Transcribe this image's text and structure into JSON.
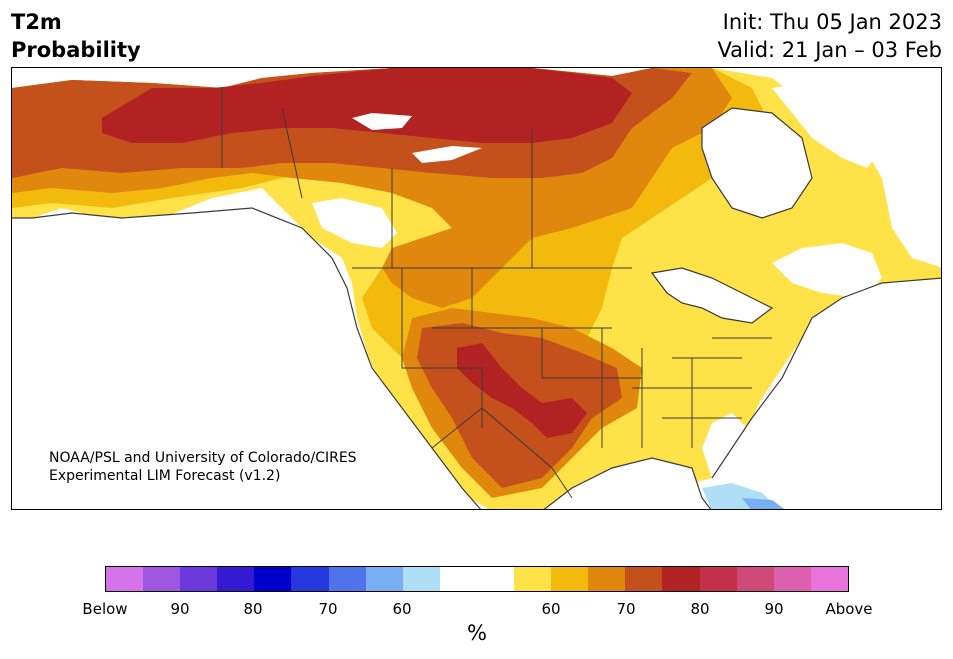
{
  "title": {
    "line1": "T2m",
    "line2": "Probability"
  },
  "header_right": {
    "init": "Init: Thu 05 Jan 2023",
    "valid": "Valid: 21 Jan – 03 Feb"
  },
  "credit": {
    "line1": "NOAA/PSL and University of Colorado/CIRES",
    "line2": "Experimental LIM Forecast (v1.2)"
  },
  "colorbar": {
    "colors": [
      "#d573ea",
      "#9d56e0",
      "#6b38db",
      "#3519d3",
      "#0000cd",
      "#2638dd",
      "#4f73ea",
      "#78aff4",
      "#aedff7",
      "#ffffff",
      "#ffffff",
      "#ffe148",
      "#f3b90c",
      "#e0880e",
      "#c4501b",
      "#b22222",
      "#c2304a",
      "#cf4a78",
      "#dc60ad",
      "#e874db"
    ],
    "tick_labels": [
      "Below",
      "90",
      "80",
      "70",
      "60",
      "60",
      "70",
      "80",
      "90",
      "Above"
    ],
    "unit": "%"
  },
  "map": {
    "ocean": "#ffffff",
    "fills": {
      "p60": "#ffe148",
      "p65": "#f3b90c",
      "p70": "#e0880e",
      "p75": "#c4501b",
      "p80": "#b22222",
      "cold60": "#aedff7",
      "cold70": "#78aff4"
    },
    "borders": "#3a3a3a"
  }
}
